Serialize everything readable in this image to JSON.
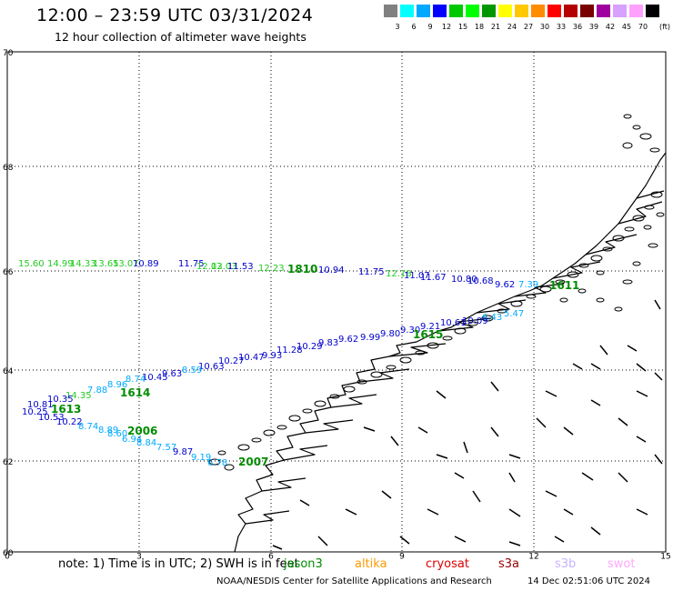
{
  "title": "12:00 – 23:59 UTC 03/31/2024",
  "subtitle": "12 hour collection of altimeter wave heights",
  "colorbar": {
    "unit": "(ft)",
    "colors": [
      "#808080",
      "#00ffff",
      "#00a8ff",
      "#0000ff",
      "#00c800",
      "#00ff00",
      "#009600",
      "#ffff00",
      "#ffc800",
      "#ff8c00",
      "#ff0000",
      "#b40000",
      "#780000",
      "#a000a0",
      "#d8a0ff",
      "#ffa0ff",
      "#000000"
    ],
    "labels": [
      "3",
      "6",
      "9",
      "12",
      "15",
      "18",
      "21",
      "24",
      "27",
      "30",
      "33",
      "36",
      "39",
      "42",
      "45",
      "70"
    ]
  },
  "axes": {
    "x_ticks": [
      "0",
      "3",
      "6",
      "9",
      "12",
      "15"
    ],
    "y_ticks": [
      "70",
      "68",
      "66",
      "64",
      "62",
      "60"
    ]
  },
  "tracks": [
    {
      "id": "t1810",
      "name": "1810",
      "name_color": "#008c00",
      "labels": [
        {
          "t": "15.60",
          "c": "#22cc22"
        },
        {
          "t": "14.99",
          "c": "#22cc22"
        },
        {
          "t": "14.33",
          "c": "#22cc22"
        },
        {
          "t": "13.65",
          "c": "#22cc22"
        },
        {
          "t": "13.07",
          "c": "#22cc22"
        },
        {
          "t": "10.89",
          "c": "#0000cc"
        },
        {
          "t": "11.75",
          "c": "#0000cc"
        },
        {
          "t": "12.03",
          "c": "#22cc22"
        },
        {
          "t": "12.03",
          "c": "#22cc22"
        },
        {
          "t": "11.53",
          "c": "#0000cc"
        },
        {
          "t": "12.23",
          "c": "#22cc22"
        },
        {
          "t": "10.94",
          "c": "#0000cc"
        },
        {
          "t": "11.75",
          "c": "#0000cc"
        },
        {
          "t": "12.18",
          "c": "#22cc22"
        },
        {
          "t": "11.07",
          "c": "#0000cc"
        },
        {
          "t": "11.67",
          "c": "#0000cc"
        },
        {
          "t": "10.80",
          "c": "#0000cc"
        },
        {
          "t": "10.68",
          "c": "#0000cc"
        },
        {
          "t": "9.62",
          "c": "#0000cc"
        },
        {
          "t": "7.39",
          "c": "#00aaff"
        }
      ]
    },
    {
      "id": "t1611",
      "name": "1611",
      "name_color": "#008c00",
      "labels": []
    },
    {
      "id": "t1615",
      "name": "1615",
      "name_color": "#008c00",
      "labels": [
        {
          "t": "5.47",
          "c": "#00aaff"
        },
        {
          "t": "6.43",
          "c": "#00aaff"
        },
        {
          "t": "10.09",
          "c": "#0000cc"
        },
        {
          "t": "10.61",
          "c": "#0000cc"
        },
        {
          "t": "9.21",
          "c": "#0000cc"
        },
        {
          "t": "9.30",
          "c": "#0000cc"
        },
        {
          "t": "9.80",
          "c": "#0000cc"
        },
        {
          "t": "9.99",
          "c": "#0000cc"
        },
        {
          "t": "9.62",
          "c": "#0000cc"
        },
        {
          "t": "9.83",
          "c": "#0000cc"
        },
        {
          "t": "10.29",
          "c": "#0000cc"
        },
        {
          "t": "11.28",
          "c": "#0000cc"
        },
        {
          "t": "9.93",
          "c": "#0000cc"
        },
        {
          "t": "10.47",
          "c": "#0000cc"
        },
        {
          "t": "10.27",
          "c": "#0000cc"
        },
        {
          "t": "10.63",
          "c": "#0000cc"
        },
        {
          "t": "8.59",
          "c": "#00aaff"
        },
        {
          "t": "9.63",
          "c": "#0000cc"
        },
        {
          "t": "10.45",
          "c": "#0000cc"
        },
        {
          "t": "8.74",
          "c": "#00aaff"
        },
        {
          "t": "8.96",
          "c": "#00aaff"
        },
        {
          "t": "7.88",
          "c": "#00aaff"
        },
        {
          "t": "14.35",
          "c": "#22cc22"
        },
        {
          "t": "10.35",
          "c": "#0000cc"
        }
      ]
    },
    {
      "id": "t1614",
      "name": "1614",
      "name_color": "#008c00",
      "labels": []
    },
    {
      "id": "t1613",
      "name": "1613",
      "name_color": "#008c00",
      "labels": [
        {
          "t": "10.81",
          "c": "#0000cc"
        },
        {
          "t": "10.25",
          "c": "#0000cc"
        },
        {
          "t": "10.53",
          "c": "#0000cc"
        },
        {
          "t": "10.22",
          "c": "#0000cc"
        }
      ]
    },
    {
      "id": "t2006",
      "name": "2006",
      "name_color": "#008c00",
      "labels": [
        {
          "t": "8.74",
          "c": "#00aaff"
        },
        {
          "t": "8.89",
          "c": "#00aaff"
        },
        {
          "t": "8.60",
          "c": "#00aaff"
        },
        {
          "t": "6.94",
          "c": "#00aaff"
        },
        {
          "t": "8.84",
          "c": "#00aaff"
        },
        {
          "t": "7.57",
          "c": "#00aaff"
        },
        {
          "t": "9.87",
          "c": "#0000cc"
        },
        {
          "t": "9.19",
          "c": "#00aaff"
        },
        {
          "t": "6.78",
          "c": "#00aaff"
        }
      ]
    },
    {
      "id": "t2007",
      "name": "2007",
      "name_color": "#008c00",
      "labels": []
    }
  ],
  "note": "note:  1) Time is in UTC;  2) SWH is in feet",
  "satellites": [
    {
      "name": "jason3",
      "color": "#008c00"
    },
    {
      "name": "altika",
      "color": "#ff9900"
    },
    {
      "name": "cryosat",
      "color": "#dd0000"
    },
    {
      "name": "s3a",
      "color": "#990000"
    },
    {
      "name": "s3b",
      "color": "#c8b4ff"
    },
    {
      "name": "swot",
      "color": "#ffaaff"
    }
  ],
  "credit": "NOAA/NESDIS Center for Satellite Applications and Research",
  "timestamp": "14 Dec 02:51:06 UTC 2024"
}
